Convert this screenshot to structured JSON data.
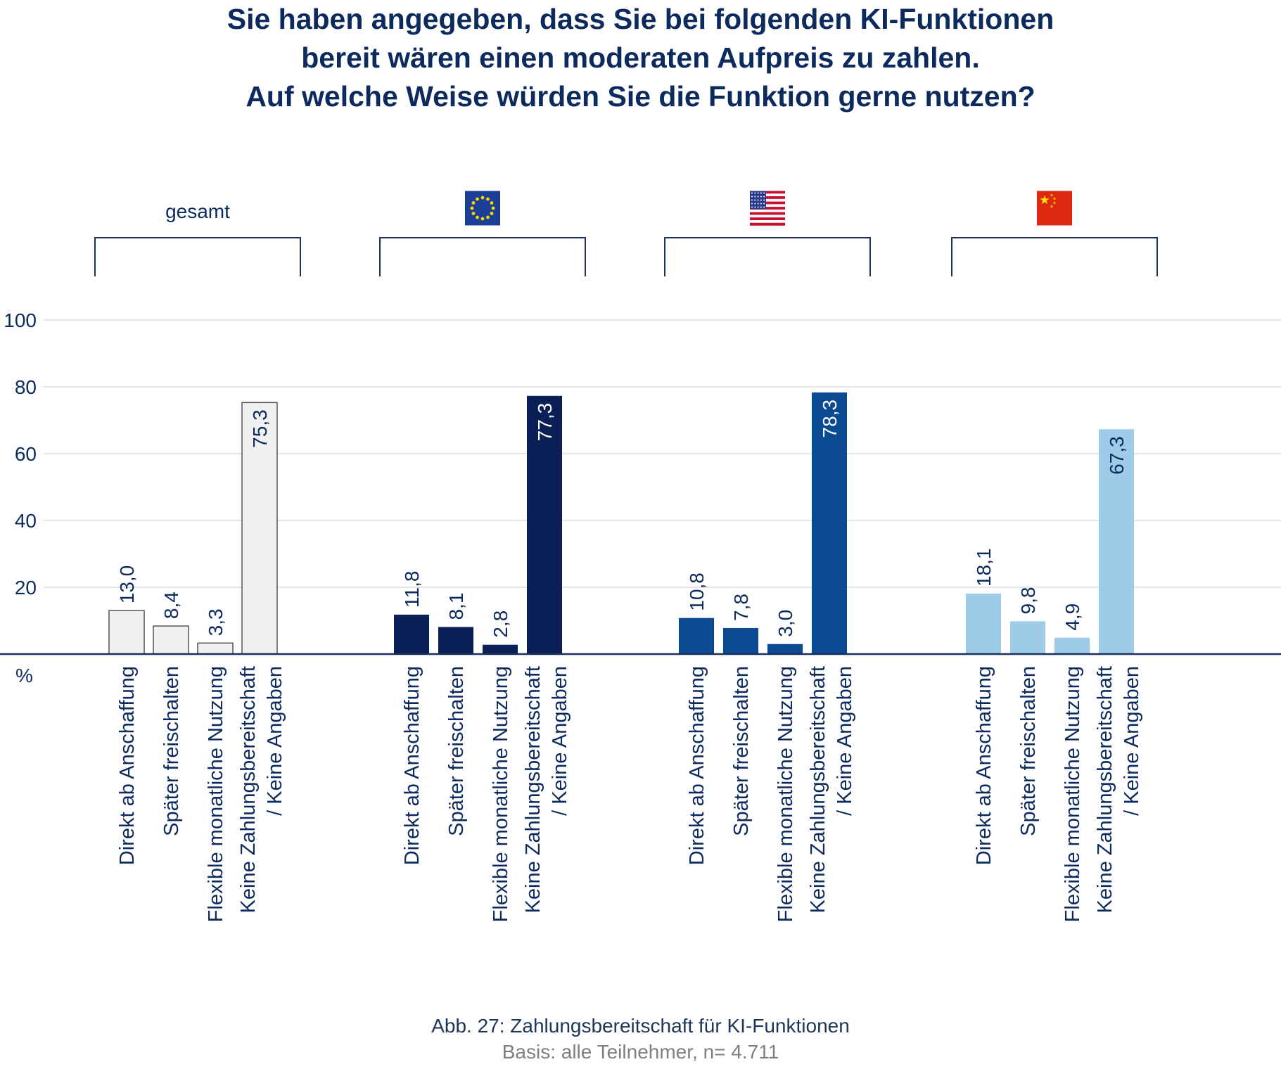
{
  "title": {
    "line1": "Sie haben angegeben, dass Sie bei folgenden KI-Funktionen",
    "line2": "bereit wären einen moderaten Aufpreis zu zahlen.",
    "line3": "Auf welche Weise würden Sie die Funktion gerne nutzen?"
  },
  "footer": {
    "caption": "Abb. 27: Zahlungsbereitschaft für KI-Funktionen",
    "basis": "Basis: alle Teilnehmer, n= 4.711"
  },
  "chart_data": {
    "type": "bar",
    "unit_label": "%",
    "ylim": [
      0,
      100
    ],
    "yticks": [
      "20",
      "40",
      "60",
      "80",
      "100"
    ],
    "grid": true,
    "categories": [
      [
        "Direkt ab Anschaffung"
      ],
      [
        "Später freischalten"
      ],
      [
        "Flexible monatliche Nutzung"
      ],
      [
        "Keine Zahlungsbereitschaft",
        "/ Keine Angaben"
      ]
    ],
    "groups": [
      {
        "label": "gesamt",
        "flag": "",
        "color": "#f0f0f0",
        "stroke": "#555555",
        "label_color": "#0c2a5e",
        "values": [
          13.0,
          8.4,
          3.3,
          75.3
        ],
        "value_labels": [
          "13,0",
          "8,4",
          "3,3",
          "75,3"
        ]
      },
      {
        "label": "",
        "flag": "eu-flag-icon",
        "color": "#0a1f55",
        "stroke": "none",
        "label_color": "#ffffff",
        "values": [
          11.8,
          8.1,
          2.8,
          77.3
        ],
        "value_labels": [
          "11,8",
          "8,1",
          "2,8",
          "77,3"
        ]
      },
      {
        "label": "",
        "flag": "us-flag-icon",
        "color": "#0a4a93",
        "stroke": "none",
        "label_color": "#ffffff",
        "values": [
          10.8,
          7.8,
          3.0,
          78.3
        ],
        "value_labels": [
          "10,8",
          "7,8",
          "3,0",
          "78,3"
        ]
      },
      {
        "label": "",
        "flag": "china-flag-icon",
        "color": "#9ecbe8",
        "stroke": "none",
        "label_color": "#0c2a5e",
        "values": [
          18.1,
          9.8,
          4.9,
          67.3
        ],
        "value_labels": [
          "18,1",
          "9,8",
          "4,9",
          "67,3"
        ]
      }
    ]
  }
}
